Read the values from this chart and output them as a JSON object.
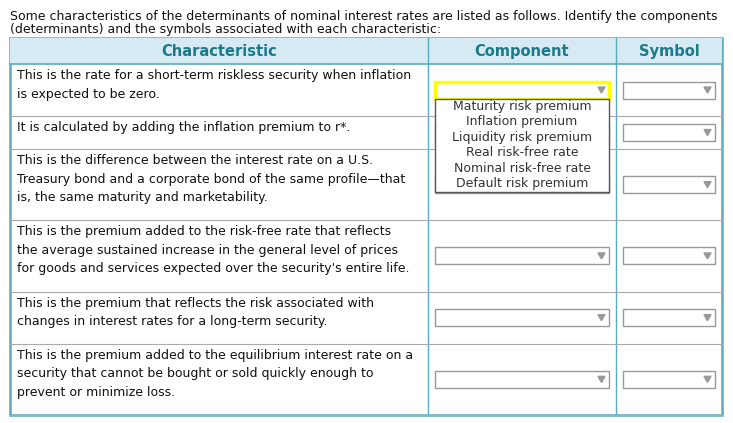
{
  "title_line1": "Some characteristics of the determinants of nominal interest rates are listed as follows. Identify the components",
  "title_line2": "(determinants) and the symbols associated with each characteristic:",
  "header": [
    "Characteristic",
    "Component",
    "Symbol"
  ],
  "header_bg": "#d6eaf3",
  "header_text_color": "#1a7a8a",
  "table_border_color": "#5aacbd",
  "separator_color": "#aaccdd",
  "row_sep_color": "#aaaaaa",
  "dropdown_border": "#999999",
  "dropdown_highlight": "#ffff00",
  "arrow_color": "#999999",
  "rows": [
    "This is the rate for a short-term riskless security when inflation\nis expected to be zero.",
    "It is calculated by adding the inflation premium to r*.",
    "This is the difference between the interest rate on a U.S.\nTreasury bond and a corporate bond of the same profile—that\nis, the same maturity and marketability.",
    "This is the premium added to the risk-free rate that reflects\nthe average sustained increase in the general level of prices\nfor goods and services expected over the security's entire life.",
    "This is the premium that reflects the risk associated with\nchanges in interest rates for a long-term security.",
    "This is the premium added to the equilibrium interest rate on a\nsecurity that cannot be bought or sold quickly enough to\nprevent or minimize loss."
  ],
  "dropdown_options": [
    "Maturity risk premium",
    "Inflation premium",
    "Liquidity risk premium",
    "Real risk-free rate",
    "Nominal risk-free rate",
    "Default risk premium"
  ],
  "title_fontsize": 9.0,
  "header_fontsize": 10.5,
  "cell_fontsize": 9.0,
  "menu_fontsize": 9.0
}
